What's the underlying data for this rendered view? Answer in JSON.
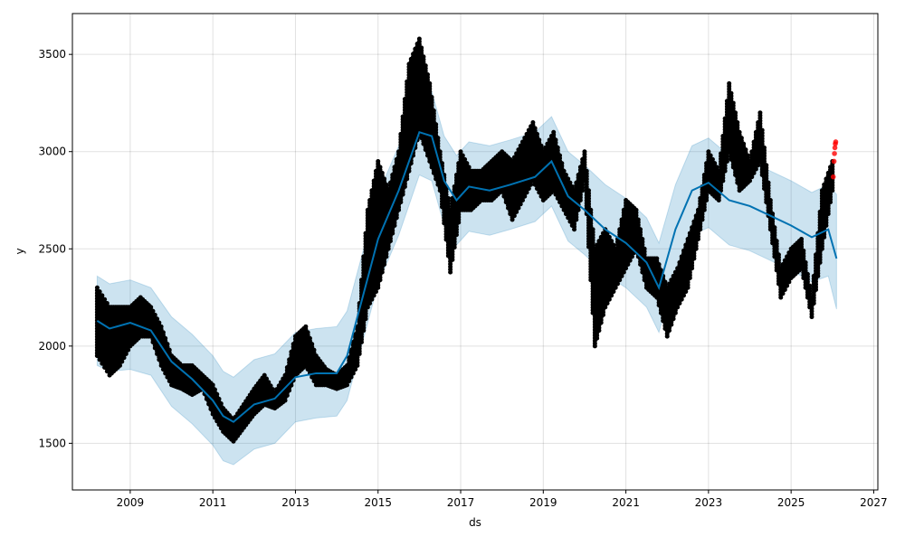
{
  "chart_data": {
    "type": "scatter",
    "title": "",
    "xlabel": "ds",
    "ylabel": "y",
    "xlim": [
      2007.6,
      2027.1
    ],
    "ylim": [
      1260,
      3710
    ],
    "x_ticks": [
      "2009",
      "2011",
      "2013",
      "2015",
      "2017",
      "2019",
      "2021",
      "2023",
      "2025",
      "2027"
    ],
    "x_tick_values": [
      2009,
      2011,
      2013,
      2015,
      2017,
      2019,
      2021,
      2023,
      2025,
      2027
    ],
    "y_ticks": [
      "1500",
      "2000",
      "2500",
      "3000",
      "3500"
    ],
    "y_tick_values": [
      1500,
      2000,
      2500,
      3000,
      3500
    ],
    "grid": true,
    "colors": {
      "forecast": "#0072B2",
      "band": "#0072B2",
      "observed": "#000000",
      "highlight": "#ff0000"
    },
    "observed_ranges": {
      "columns": [
        "year",
        "low",
        "high"
      ],
      "rows": [
        [
          2008.2,
          1950,
          2300
        ],
        [
          2008.5,
          1850,
          2200
        ],
        [
          2008.75,
          1900,
          2200
        ],
        [
          2009.0,
          2000,
          2200
        ],
        [
          2009.25,
          2050,
          2250
        ],
        [
          2009.5,
          2050,
          2200
        ],
        [
          2009.75,
          1900,
          2100
        ],
        [
          2010.0,
          1800,
          1950
        ],
        [
          2010.25,
          1780,
          1900
        ],
        [
          2010.5,
          1750,
          1900
        ],
        [
          2010.75,
          1780,
          1850
        ],
        [
          2011.0,
          1650,
          1800
        ],
        [
          2011.25,
          1560,
          1680
        ],
        [
          2011.5,
          1510,
          1620
        ],
        [
          2011.75,
          1580,
          1700
        ],
        [
          2012.0,
          1650,
          1780
        ],
        [
          2012.25,
          1700,
          1850
        ],
        [
          2012.5,
          1680,
          1760
        ],
        [
          2012.75,
          1720,
          1850
        ],
        [
          2013.0,
          1850,
          2050
        ],
        [
          2013.25,
          1900,
          2100
        ],
        [
          2013.5,
          1800,
          1950
        ],
        [
          2013.75,
          1800,
          1880
        ],
        [
          2014.0,
          1780,
          1850
        ],
        [
          2014.25,
          1800,
          1900
        ],
        [
          2014.5,
          1900,
          2100
        ],
        [
          2014.75,
          2200,
          2700
        ],
        [
          2015.0,
          2300,
          2950
        ],
        [
          2015.25,
          2500,
          2800
        ],
        [
          2015.5,
          2700,
          3000
        ],
        [
          2015.75,
          2900,
          3450
        ],
        [
          2016.0,
          3100,
          3580
        ],
        [
          2016.25,
          2950,
          3350
        ],
        [
          2016.5,
          2800,
          3000
        ],
        [
          2016.75,
          2380,
          2700
        ],
        [
          2017.0,
          2700,
          3000
        ],
        [
          2017.25,
          2700,
          2900
        ],
        [
          2017.5,
          2750,
          2900
        ],
        [
          2017.75,
          2750,
          2950
        ],
        [
          2018.0,
          2800,
          3000
        ],
        [
          2018.25,
          2650,
          2950
        ],
        [
          2018.5,
          2750,
          3050
        ],
        [
          2018.75,
          2850,
          3150
        ],
        [
          2019.0,
          2750,
          3000
        ],
        [
          2019.25,
          2800,
          3100
        ],
        [
          2019.5,
          2700,
          2900
        ],
        [
          2019.75,
          2600,
          2800
        ],
        [
          2020.0,
          2850,
          3000
        ],
        [
          2020.25,
          2000,
          2500
        ],
        [
          2020.5,
          2200,
          2600
        ],
        [
          2020.75,
          2300,
          2500
        ],
        [
          2021.0,
          2400,
          2750
        ],
        [
          2021.25,
          2500,
          2700
        ],
        [
          2021.5,
          2300,
          2450
        ],
        [
          2021.75,
          2250,
          2450
        ],
        [
          2022.0,
          2050,
          2300
        ],
        [
          2022.25,
          2200,
          2400
        ],
        [
          2022.5,
          2300,
          2550
        ],
        [
          2022.75,
          2550,
          2700
        ],
        [
          2023.0,
          2800,
          3000
        ],
        [
          2023.25,
          2750,
          2900
        ],
        [
          2023.5,
          3000,
          3350
        ],
        [
          2023.75,
          2800,
          3100
        ],
        [
          2024.0,
          2850,
          2950
        ],
        [
          2024.25,
          2950,
          3200
        ],
        [
          2024.5,
          2600,
          2750
        ],
        [
          2024.75,
          2250,
          2400
        ],
        [
          2025.0,
          2350,
          2500
        ],
        [
          2025.25,
          2400,
          2550
        ],
        [
          2025.5,
          2150,
          2250
        ],
        [
          2025.75,
          2500,
          2800
        ],
        [
          2026.0,
          2800,
          2950
        ]
      ]
    },
    "highlighted_points": [
      [
        2026.02,
        2870
      ],
      [
        2026.04,
        2950
      ],
      [
        2026.05,
        2990
      ],
      [
        2026.06,
        3020
      ],
      [
        2026.07,
        3040
      ],
      [
        2026.08,
        3050
      ]
    ],
    "forecast": {
      "columns": [
        "year",
        "yhat",
        "yhat_lower",
        "yhat_upper"
      ],
      "rows": [
        [
          2008.2,
          2130,
          1900,
          2360
        ],
        [
          2008.5,
          2090,
          1870,
          2320
        ],
        [
          2009.0,
          2120,
          1880,
          2340
        ],
        [
          2009.5,
          2080,
          1850,
          2300
        ],
        [
          2010.0,
          1920,
          1690,
          2150
        ],
        [
          2010.5,
          1830,
          1600,
          2060
        ],
        [
          2011.0,
          1720,
          1490,
          1950
        ],
        [
          2011.25,
          1640,
          1410,
          1870
        ],
        [
          2011.5,
          1610,
          1390,
          1840
        ],
        [
          2012.0,
          1700,
          1470,
          1930
        ],
        [
          2012.5,
          1730,
          1500,
          1960
        ],
        [
          2013.0,
          1840,
          1610,
          2070
        ],
        [
          2013.5,
          1860,
          1630,
          2090
        ],
        [
          2014.0,
          1860,
          1640,
          2100
        ],
        [
          2014.25,
          1950,
          1720,
          2180
        ],
        [
          2014.5,
          2150,
          1920,
          2380
        ],
        [
          2015.0,
          2550,
          2320,
          2780
        ],
        [
          2015.5,
          2800,
          2570,
          3030
        ],
        [
          2016.0,
          3100,
          2880,
          3330
        ],
        [
          2016.3,
          3080,
          2850,
          3310
        ],
        [
          2016.6,
          2850,
          2620,
          3080
        ],
        [
          2016.9,
          2750,
          2520,
          2980
        ],
        [
          2017.2,
          2820,
          2590,
          3050
        ],
        [
          2017.7,
          2800,
          2570,
          3030
        ],
        [
          2018.2,
          2830,
          2600,
          3060
        ],
        [
          2018.8,
          2870,
          2640,
          3100
        ],
        [
          2019.2,
          2950,
          2720,
          3180
        ],
        [
          2019.6,
          2770,
          2540,
          3000
        ],
        [
          2020.0,
          2700,
          2470,
          2930
        ],
        [
          2020.5,
          2600,
          2370,
          2830
        ],
        [
          2021.0,
          2530,
          2300,
          2760
        ],
        [
          2021.5,
          2430,
          2200,
          2660
        ],
        [
          2021.8,
          2300,
          2070,
          2530
        ],
        [
          2022.2,
          2600,
          2370,
          2830
        ],
        [
          2022.6,
          2800,
          2570,
          3030
        ],
        [
          2023.0,
          2840,
          2610,
          3070
        ],
        [
          2023.5,
          2750,
          2520,
          2980
        ],
        [
          2024.0,
          2720,
          2490,
          2950
        ],
        [
          2024.5,
          2670,
          2440,
          2900
        ],
        [
          2025.0,
          2620,
          2390,
          2850
        ],
        [
          2025.5,
          2560,
          2330,
          2790
        ],
        [
          2025.9,
          2600,
          2360,
          2830
        ],
        [
          2026.1,
          2450,
          2190,
          2780
        ]
      ]
    }
  }
}
